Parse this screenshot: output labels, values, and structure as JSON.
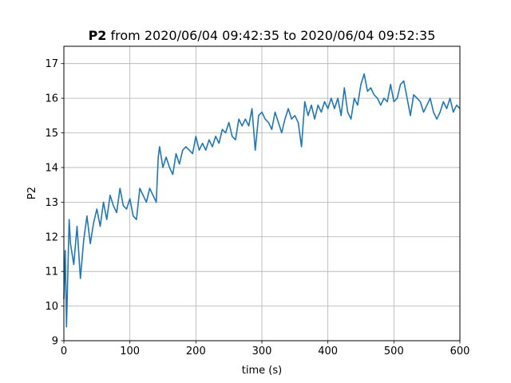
{
  "chart_data": {
    "type": "line",
    "title_bold": "P2",
    "title_rest": " from 2020/06/04 09:42:35 to 2020/06/04 09:52:35",
    "xlabel": "time (s)",
    "ylabel": "P2",
    "xlim": [
      0,
      600
    ],
    "ylim": [
      9,
      17.5
    ],
    "xticks": [
      0,
      100,
      200,
      300,
      400,
      500,
      600
    ],
    "yticks": [
      9,
      10,
      11,
      12,
      13,
      14,
      15,
      16,
      17
    ],
    "grid": true,
    "line_color": "#1f77b4",
    "series": [
      {
        "x": [
          0,
          2,
          4,
          6,
          8,
          10,
          15,
          20,
          25,
          30,
          35,
          40,
          45,
          50,
          55,
          60,
          65,
          70,
          75,
          80,
          85,
          90,
          95,
          100,
          105,
          110,
          115,
          120,
          125,
          130,
          135,
          140,
          143,
          145,
          150,
          155,
          160,
          165,
          170,
          175,
          180,
          185,
          190,
          195,
          200,
          205,
          210,
          215,
          220,
          225,
          230,
          235,
          240,
          245,
          250,
          255,
          260,
          265,
          270,
          275,
          280,
          285,
          290,
          295,
          300,
          305,
          310,
          315,
          320,
          325,
          330,
          335,
          340,
          345,
          350,
          355,
          360,
          365,
          370,
          375,
          380,
          385,
          390,
          395,
          400,
          405,
          410,
          415,
          420,
          425,
          430,
          435,
          440,
          445,
          450,
          455,
          460,
          465,
          470,
          475,
          480,
          485,
          490,
          495,
          500,
          505,
          510,
          515,
          520,
          525,
          530,
          535,
          540,
          545,
          550,
          555,
          560,
          565,
          570,
          575,
          580,
          585,
          590,
          595,
          600
        ],
        "y": [
          10.2,
          11.6,
          9.4,
          11.0,
          12.5,
          11.8,
          11.2,
          12.3,
          10.8,
          11.9,
          12.6,
          11.8,
          12.4,
          12.8,
          12.3,
          13.0,
          12.5,
          13.2,
          12.9,
          12.7,
          13.4,
          12.9,
          12.8,
          13.1,
          12.6,
          12.5,
          13.4,
          13.2,
          13.0,
          13.4,
          13.2,
          13.0,
          14.3,
          14.6,
          14.0,
          14.3,
          14.0,
          13.8,
          14.4,
          14.1,
          14.5,
          14.6,
          14.5,
          14.4,
          14.9,
          14.5,
          14.7,
          14.5,
          14.8,
          14.6,
          14.9,
          14.7,
          15.1,
          15.0,
          15.3,
          14.9,
          14.8,
          15.4,
          15.2,
          15.4,
          15.2,
          15.7,
          14.5,
          15.5,
          15.6,
          15.4,
          15.3,
          15.1,
          15.6,
          15.3,
          15.0,
          15.4,
          15.7,
          15.4,
          15.5,
          15.3,
          14.6,
          15.9,
          15.5,
          15.8,
          15.4,
          15.8,
          15.6,
          15.9,
          15.7,
          16.0,
          15.7,
          16.0,
          15.5,
          16.3,
          15.6,
          15.4,
          16.0,
          15.8,
          16.4,
          16.7,
          16.2,
          16.3,
          16.1,
          16.0,
          15.8,
          16.0,
          15.9,
          16.4,
          15.9,
          16.0,
          16.4,
          16.5,
          16.0,
          15.5,
          16.1,
          16.0,
          15.9,
          15.6,
          15.8,
          16.0,
          15.6,
          15.4,
          15.6,
          15.9,
          15.7,
          16.0,
          15.6,
          15.8,
          15.7
        ]
      }
    ]
  }
}
